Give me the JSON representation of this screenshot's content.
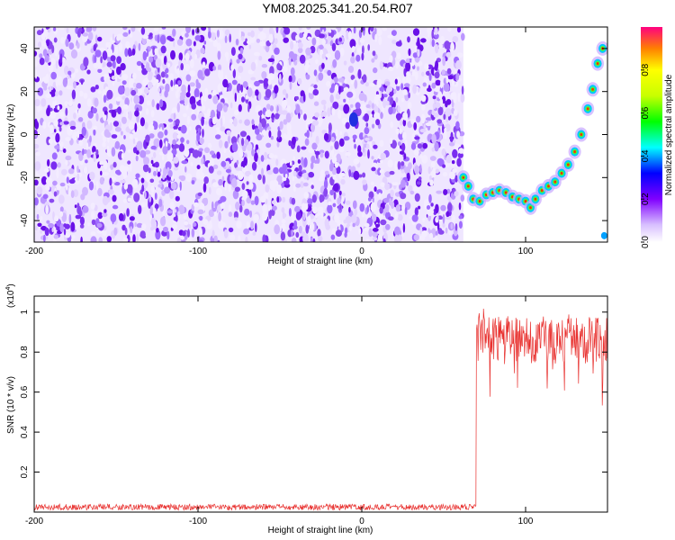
{
  "title": "YM08.2025.341.20.54.R07",
  "chart_data": [
    {
      "type": "heatmap",
      "title": "YM08.2025.341.20.54.R07",
      "xlabel": "Height of straight line (km)",
      "ylabel": "Frequency (Hz)",
      "xlim": [
        -200,
        150
      ],
      "ylim": [
        -50,
        50
      ],
      "xticks": [
        -200,
        -100,
        0,
        100
      ],
      "yticks": [
        -40,
        -20,
        0,
        20,
        40
      ],
      "noise_region_x": [
        -200,
        62
      ],
      "trace": {
        "name": "",
        "x": [
          62,
          65,
          68,
          72,
          76,
          80,
          84,
          88,
          92,
          96,
          100,
          103,
          106,
          110,
          114,
          118,
          122,
          126,
          130,
          134,
          138,
          141,
          144,
          147
        ],
        "y": [
          -20,
          -24,
          -30,
          -31,
          -28,
          -27,
          -26,
          -27,
          -29,
          -30,
          -31,
          -34,
          -30,
          -26,
          -24,
          -22,
          -18,
          -14,
          -8,
          0,
          12,
          21,
          33,
          40
        ]
      },
      "colorbar": {
        "label": "Normalized spectral amplitude",
        "range": [
          0,
          1
        ],
        "ticks": [
          0.0,
          0.2,
          0.4,
          0.6,
          0.8
        ]
      }
    },
    {
      "type": "line",
      "xlabel": "Height of straight line (km)",
      "ylabel": "SNR (10 * v/v)",
      "y_multiplier": "(x10",
      "y_multiplier_exp": "4",
      "xlim": [
        -200,
        150
      ],
      "ylim": [
        0,
        1.08
      ],
      "xticks": [
        -200,
        -100,
        0,
        100
      ],
      "yticks": [
        0.2,
        0.4,
        0.6,
        0.8,
        1.0
      ],
      "series": [
        {
          "name": "",
          "color": "#e8302e",
          "segments": [
            {
              "x": [
                -200,
                70
              ],
              "baseline": 0.025,
              "noise": 0.015
            },
            {
              "x": [
                70,
                150
              ],
              "baseline": 0.86,
              "noise": 0.12
            }
          ]
        }
      ]
    }
  ]
}
